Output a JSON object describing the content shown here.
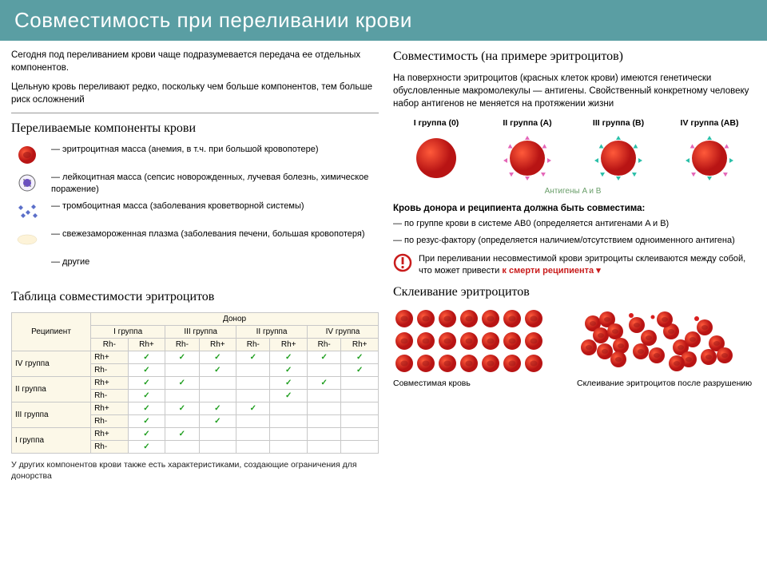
{
  "header": {
    "title": "Совместимость при переливании крови"
  },
  "left": {
    "intro1": "Сегодня под переливанием крови чаще подразумевается передача ее отдельных компонентов.",
    "intro2": "Цельную кровь переливают редко, поскольку чем больше компонентов, тем больше риск осложнений",
    "components_title": "Переливаемые компоненты крови",
    "components": {
      "c0": "— эритроцитная масса (анемия, в т.ч. при большой кровопотере)",
      "c1": "— лейкоцитная масса (сепсис новорожденных, лучевая болезнь, химическое поражение)",
      "c2": "— тромбоцитная масса (заболевания кроветворной системы)",
      "c3": "— свежезамороженная плазма (заболевания печени, большая кровопотеря)",
      "c4": "— другие"
    },
    "table_title": "Таблица совместимости эритроцитов",
    "table": {
      "donor_label": "Донор",
      "recip_label": "Реципиент",
      "col_groups": {
        "g1": "I группа",
        "g3": "III группа",
        "g2": "II группа",
        "g4": "IV группа"
      },
      "rh_minus": "Rh-",
      "rh_plus": "Rh+",
      "row_groups": {
        "r4": "IV группа",
        "r2": "II группа",
        "r3": "III группа",
        "r1": "I группа"
      }
    },
    "footnote": "У других компонентов крови также есть характеристиками, создающие ограничения для донорства"
  },
  "right": {
    "compat_title": "Совместимость (на примере эритроцитов)",
    "compat_para": "На поверхности эритроцитов (красных клеток крови) имеются генетически обусловленные макромолекулы — антигены. Свойственный конкретному человеку набор антигенов не меняется на протяжении жизни",
    "groups": {
      "g1": "I группа (0)",
      "g2": "II группа (A)",
      "g3": "III группа (B)",
      "g4": "IV группа (AB)"
    },
    "antigen_label": "Антигены A и B",
    "must_line": "Кровь донора и реципиента должна быть совместима:",
    "rule1": "— по группе крови в системе AB0 (определяется антигенами A и B)",
    "rule2": "— по резус-фактору (определяется наличием/отсутствием одноименного антигена)",
    "warn": "При переливании несовместимой крови эритроциты склеиваются между собой, что может привести ",
    "warn_red": "к смерти реципиента ▾",
    "agg_title": "Склеивание эритроцитов",
    "agg_left": "Совместимая кровь",
    "agg_right": "Склеивание эритроцитов после разрушению"
  },
  "colors": {
    "header_bg": "#5a9ea3",
    "rbc": "#d91e1e",
    "rbc_dark": "#9c1515",
    "wbc_border": "#555",
    "wbc_center": "#6a4fbf",
    "platelet": "#5b6fc9",
    "green_antigen": "#2bbfa8",
    "pink_antigen": "#e466b8",
    "tick": "#1e9e1e",
    "warn": "#c91c1c"
  }
}
